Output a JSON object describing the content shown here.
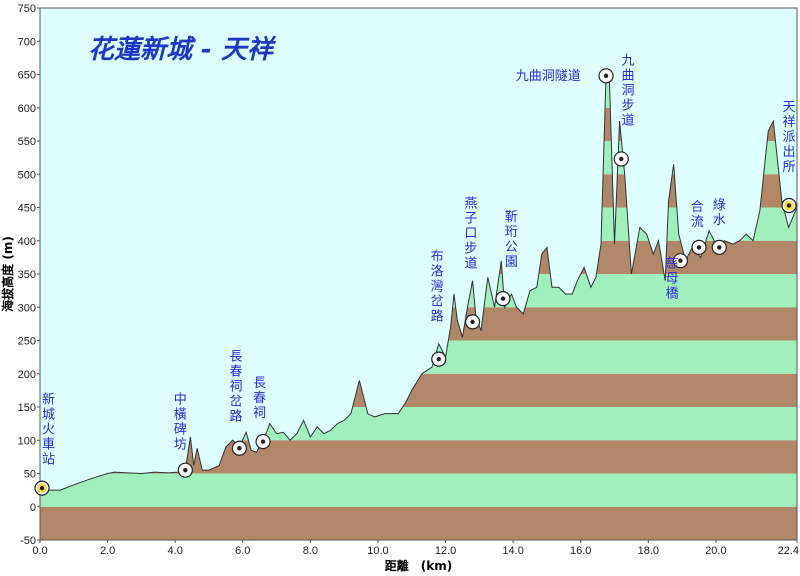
{
  "chart_data": {
    "type": "area",
    "title": "花蓮新城 - 天祥",
    "xlabel": "距離　(km)",
    "ylabel": "海拔高度 (m)",
    "xlim": [
      0,
      22.4
    ],
    "ylim": [
      -50,
      750
    ],
    "xticks": [
      "0.0",
      "2.0",
      "4.0",
      "6.0",
      "8.0",
      "10.0",
      "12.0",
      "14.0",
      "16.0",
      "18.0",
      "20.0",
      "22.4"
    ],
    "xtick_values": [
      0,
      2,
      4,
      6,
      8,
      10,
      12,
      14,
      16,
      18,
      20,
      22.4
    ],
    "yticks": [
      "-50",
      "0",
      "50",
      "100",
      "150",
      "200",
      "250",
      "300",
      "350",
      "400",
      "450",
      "500",
      "550",
      "600",
      "650",
      "700",
      "750"
    ],
    "ytick_values": [
      -50,
      0,
      50,
      100,
      150,
      200,
      250,
      300,
      350,
      400,
      450,
      500,
      550,
      600,
      650,
      700,
      750
    ],
    "band_size": 50,
    "colors": {
      "plot_bg": "#ddffff",
      "band_green": "#9ff0bc",
      "band_brown": "#b08868",
      "profile_line": "#333333",
      "label": "#2a2ad8",
      "title": "#1d38c8"
    },
    "profile": [
      [
        0,
        30
      ],
      [
        0.3,
        25
      ],
      [
        0.6,
        25
      ],
      [
        1.0,
        33
      ],
      [
        1.5,
        42
      ],
      [
        2.0,
        50
      ],
      [
        2.2,
        52
      ],
      [
        2.6,
        51
      ],
      [
        3.0,
        50
      ],
      [
        3.4,
        52
      ],
      [
        3.8,
        51
      ],
      [
        4.1,
        52
      ],
      [
        4.3,
        55
      ],
      [
        4.45,
        105
      ],
      [
        4.55,
        62
      ],
      [
        4.65,
        88
      ],
      [
        4.8,
        55
      ],
      [
        5.0,
        55
      ],
      [
        5.3,
        62
      ],
      [
        5.5,
        90
      ],
      [
        5.7,
        100
      ],
      [
        5.9,
        90
      ],
      [
        6.1,
        112
      ],
      [
        6.25,
        85
      ],
      [
        6.4,
        82
      ],
      [
        6.6,
        98
      ],
      [
        6.8,
        125
      ],
      [
        7.0,
        110
      ],
      [
        7.2,
        112
      ],
      [
        7.4,
        100
      ],
      [
        7.6,
        110
      ],
      [
        7.8,
        130
      ],
      [
        8.0,
        105
      ],
      [
        8.2,
        120
      ],
      [
        8.4,
        110
      ],
      [
        8.6,
        115
      ],
      [
        8.8,
        125
      ],
      [
        9.0,
        130
      ],
      [
        9.2,
        140
      ],
      [
        9.45,
        190
      ],
      [
        9.7,
        140
      ],
      [
        9.9,
        135
      ],
      [
        10.2,
        140
      ],
      [
        10.6,
        140
      ],
      [
        10.8,
        155
      ],
      [
        11.0,
        175
      ],
      [
        11.3,
        200
      ],
      [
        11.6,
        210
      ],
      [
        11.8,
        245
      ],
      [
        12.0,
        225
      ],
      [
        12.15,
        270
      ],
      [
        12.25,
        320
      ],
      [
        12.35,
        280
      ],
      [
        12.5,
        255
      ],
      [
        12.65,
        300
      ],
      [
        12.8,
        340
      ],
      [
        12.9,
        285
      ],
      [
        13.05,
        265
      ],
      [
        13.25,
        345
      ],
      [
        13.45,
        300
      ],
      [
        13.65,
        370
      ],
      [
        13.75,
        300
      ],
      [
        13.95,
        320
      ],
      [
        14.1,
        300
      ],
      [
        14.3,
        290
      ],
      [
        14.5,
        325
      ],
      [
        14.7,
        330
      ],
      [
        14.85,
        380
      ],
      [
        15.0,
        390
      ],
      [
        15.15,
        330
      ],
      [
        15.35,
        330
      ],
      [
        15.55,
        320
      ],
      [
        15.75,
        320
      ],
      [
        15.9,
        340
      ],
      [
        16.1,
        360
      ],
      [
        16.3,
        330
      ],
      [
        16.45,
        345
      ],
      [
        16.6,
        395
      ],
      [
        16.75,
        650
      ],
      [
        16.85,
        640
      ],
      [
        17.0,
        395
      ],
      [
        17.15,
        580
      ],
      [
        17.3,
        500
      ],
      [
        17.5,
        350
      ],
      [
        17.75,
        420
      ],
      [
        17.95,
        410
      ],
      [
        18.15,
        380
      ],
      [
        18.3,
        400
      ],
      [
        18.5,
        340
      ],
      [
        18.6,
        460
      ],
      [
        18.75,
        515
      ],
      [
        18.9,
        410
      ],
      [
        19.1,
        370
      ],
      [
        19.3,
        390
      ],
      [
        19.55,
        375
      ],
      [
        19.8,
        415
      ],
      [
        20.05,
        390
      ],
      [
        20.25,
        400
      ],
      [
        20.5,
        395
      ],
      [
        20.7,
        400
      ],
      [
        20.9,
        410
      ],
      [
        21.1,
        400
      ],
      [
        21.3,
        445
      ],
      [
        21.55,
        565
      ],
      [
        21.7,
        580
      ],
      [
        21.95,
        460
      ],
      [
        22.15,
        420
      ],
      [
        22.4,
        450
      ]
    ],
    "landmarks": [
      {
        "name": "新城火車站",
        "x": 0.0,
        "y": 28,
        "icon": "train-icon",
        "label_x": 0.25,
        "label_y": 155,
        "vertical": true
      },
      {
        "name": "中橫碑坊",
        "x": 4.3,
        "y": 55,
        "icon": "camera-icon",
        "label_x": 4.15,
        "label_y": 155,
        "vertical": true
      },
      {
        "name": "長春祠岔路",
        "x": 5.9,
        "y": 88,
        "icon": "hiker-icon",
        "label_x": 5.8,
        "label_y": 220,
        "vertical": true
      },
      {
        "name": "長春祠",
        "x": 6.6,
        "y": 98,
        "icon": "camera-icon",
        "label_x": 6.5,
        "label_y": 180,
        "vertical": true
      },
      {
        "name": "布洛灣岔路",
        "x": 11.8,
        "y": 222,
        "icon": "hiker-icon",
        "label_x": 11.75,
        "label_y": 370,
        "vertical": true
      },
      {
        "name": "燕子口步道",
        "x": 12.8,
        "y": 278,
        "icon": "hiker-icon",
        "label_x": 12.75,
        "label_y": 450,
        "vertical": true
      },
      {
        "name": "靳珩公園",
        "x": 13.7,
        "y": 313,
        "icon": "hiker-icon",
        "label_x": 13.95,
        "label_y": 430,
        "vertical": true
      },
      {
        "name": "九曲洞隧道",
        "x": 16.75,
        "y": 648,
        "icon": "tunnel-icon",
        "label_x": 16.0,
        "label_y": 648,
        "vertical": false
      },
      {
        "name": "九曲洞步道",
        "x": 17.2,
        "y": 523,
        "icon": "hiker-icon",
        "label_x": 17.4,
        "label_y": 665,
        "vertical": true
      },
      {
        "name": "慈母橋",
        "x": 18.95,
        "y": 370,
        "icon": "bridge-icon",
        "label_x": 18.7,
        "label_y": 360,
        "vertical": true
      },
      {
        "name": "合流",
        "x": 19.5,
        "y": 390,
        "icon": "camp-icon",
        "label_x": 19.45,
        "label_y": 445,
        "vertical": true
      },
      {
        "name": "綠水",
        "x": 20.1,
        "y": 390,
        "icon": "bridge-icon",
        "label_x": 20.1,
        "label_y": 448,
        "vertical": true
      },
      {
        "name": "天祥派出所",
        "x": 22.4,
        "y": 453,
        "icon": "police-icon",
        "label_x": 22.3,
        "label_y": 595,
        "vertical": true
      }
    ]
  }
}
